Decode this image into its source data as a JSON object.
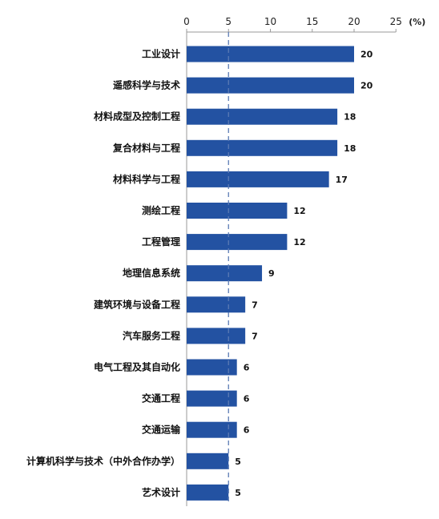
{
  "chart_data": {
    "type": "bar",
    "orientation": "horizontal",
    "title": "",
    "xlabel": "",
    "ylabel": "",
    "unit": "(%)",
    "xlim": [
      0,
      25
    ],
    "xticks": [
      0,
      5,
      10,
      15,
      20,
      25
    ],
    "reference_line": 5,
    "grid": false,
    "bar_color": "#2352a2",
    "categories": [
      "工业设计",
      "遥感科学与技术",
      "材料成型及控制工程",
      "复合材料与工程",
      "材料科学与工程",
      "测绘工程",
      "工程管理",
      "地理信息系统",
      "建筑环境与设备工程",
      "汽车服务工程",
      "电气工程及其自动化",
      "交通工程",
      "交通运输",
      "计算机科学与技术（中外合作办学）",
      "艺术设计"
    ],
    "values": [
      20,
      20,
      18,
      18,
      17,
      12,
      12,
      9,
      7,
      7,
      6,
      6,
      6,
      5,
      5
    ]
  }
}
